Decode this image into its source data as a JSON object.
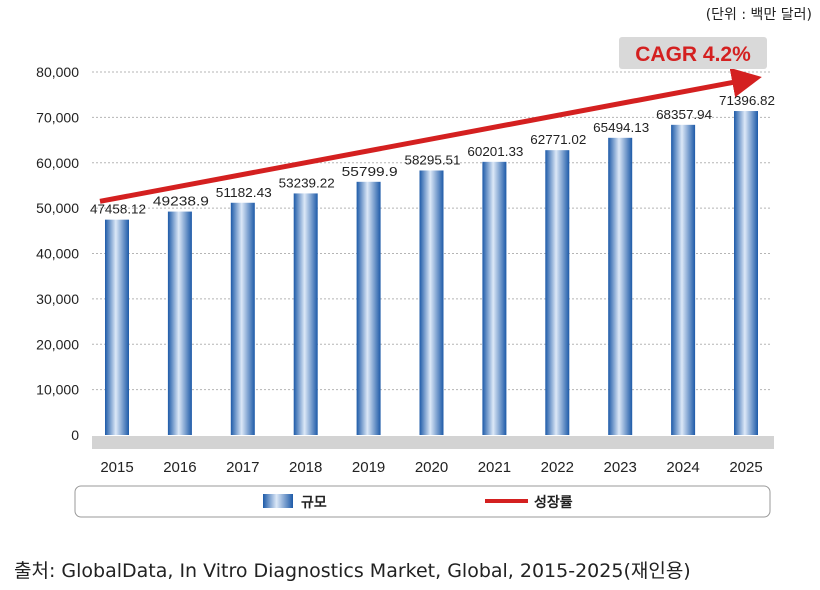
{
  "unit_note": "(단위 : 백만 달러)",
  "cagr_label": "CAGR 4.2%",
  "source": "출처: GlobalData, In Vitro Diagnostics Market, Global, 2015-2025(재인용)",
  "colors": {
    "bar_dark": "#1d5aa8",
    "bar_light": "#dce8f7",
    "trend": "#d42020",
    "badge_bg": "#d9d9d9",
    "badge_text": "#d42020",
    "axis_band": "#d3d3d3"
  },
  "chart_data": {
    "type": "bar",
    "title": "",
    "categories": [
      "2015",
      "2016",
      "2017",
      "2018",
      "2019",
      "2020",
      "2021",
      "2022",
      "2023",
      "2024",
      "2025"
    ],
    "series": [
      {
        "name": "규모",
        "values": [
          47458.12,
          49238.9,
          51182.43,
          53239.22,
          55799.9,
          58295.51,
          60201.33,
          62771.02,
          65494.13,
          68357.94,
          71396.82
        ],
        "data_labels": [
          "47458.12",
          "49238.9",
          "51182.43",
          "53239.22",
          "55799.9",
          "58295.51",
          "60201.33",
          "62771.02",
          "65494.13",
          "68357.94",
          "71396.82"
        ]
      }
    ],
    "trend_series": {
      "name": "성장률",
      "type": "arrow",
      "start_value": 51500,
      "end_value": 78500
    },
    "ylim": [
      0,
      80000
    ],
    "yticks": [
      0,
      10000,
      20000,
      30000,
      40000,
      50000,
      60000,
      70000,
      80000
    ],
    "ytick_labels": [
      "0",
      "10,000",
      "20,000",
      "30,000",
      "40,000",
      "50,000",
      "60,000",
      "70,000",
      "80,000"
    ],
    "xlabel": "",
    "ylabel": "",
    "grid": true,
    "legend": [
      {
        "label": "규모",
        "kind": "bar"
      },
      {
        "label": "성장률",
        "kind": "line"
      }
    ],
    "legend_position": "bottom"
  }
}
